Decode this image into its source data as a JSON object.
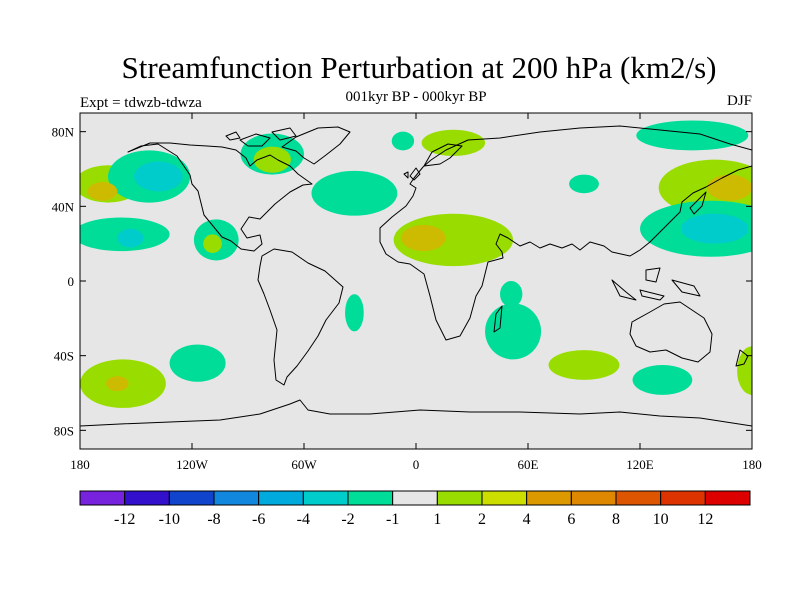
{
  "title": "Streamfunction Perturbation at 200 hPa (km2/s)",
  "subtitle": "001kyr BP - 000kyr BP",
  "left_label": "Expt = tdwzb-tdwza",
  "right_label": "DJF",
  "map": {
    "projection": "cylindrical-equidistant",
    "lon_range": [
      -180,
      180
    ],
    "lat_range": [
      -90,
      90
    ],
    "background_color": "#e6e6e6",
    "lat_ticks": [
      {
        "lat": 80,
        "label": "80N"
      },
      {
        "lat": 40,
        "label": "40N"
      },
      {
        "lat": 0,
        "label": "0"
      },
      {
        "lat": -40,
        "label": "40S"
      },
      {
        "lat": -80,
        "label": "80S"
      }
    ],
    "lon_ticks": [
      {
        "lon": -180,
        "label": "180"
      },
      {
        "lon": -120,
        "label": "120W"
      },
      {
        "lon": -60,
        "label": "60W"
      },
      {
        "lon": 0,
        "label": "0"
      },
      {
        "lon": 60,
        "label": "60E"
      },
      {
        "lon": 120,
        "label": "120E"
      },
      {
        "lon": 180,
        "label": "180"
      }
    ],
    "anomalies": [
      {
        "lon": -165,
        "lat": 52,
        "rx": 18,
        "ry": 10,
        "level": 1
      },
      {
        "lon": -168,
        "lat": 48,
        "rx": 8,
        "ry": 5,
        "level": 2
      },
      {
        "lon": -143,
        "lat": 56,
        "rx": 22,
        "ry": 14,
        "level": -1
      },
      {
        "lon": -138,
        "lat": 56,
        "rx": 13,
        "ry": 8,
        "level": -2
      },
      {
        "lon": -158,
        "lat": 25,
        "rx": 26,
        "ry": 9,
        "level": -1
      },
      {
        "lon": -153,
        "lat": 23,
        "rx": 7,
        "ry": 5,
        "level": -2
      },
      {
        "lon": -107,
        "lat": 22,
        "rx": 12,
        "ry": 11,
        "level": -1
      },
      {
        "lon": -109,
        "lat": 20,
        "rx": 5,
        "ry": 5,
        "level": 1
      },
      {
        "lon": -77,
        "lat": 68,
        "rx": 17,
        "ry": 11,
        "level": -1
      },
      {
        "lon": -77,
        "lat": 65,
        "rx": 10,
        "ry": 7,
        "level": 1
      },
      {
        "lon": -33,
        "lat": 47,
        "rx": 23,
        "ry": 12,
        "level": -1
      },
      {
        "lon": 20,
        "lat": 22,
        "rx": 32,
        "ry": 14,
        "level": 1
      },
      {
        "lon": 4,
        "lat": 23,
        "rx": 12,
        "ry": 7,
        "level": 2
      },
      {
        "lon": 20,
        "lat": 74,
        "rx": 17,
        "ry": 7,
        "level": 1
      },
      {
        "lon": -7,
        "lat": 75,
        "rx": 6,
        "ry": 5,
        "level": -1
      },
      {
        "lon": 90,
        "lat": 52,
        "rx": 8,
        "ry": 5,
        "level": -1
      },
      {
        "lon": 148,
        "lat": 78,
        "rx": 30,
        "ry": 8,
        "level": -1
      },
      {
        "lon": 160,
        "lat": 50,
        "rx": 30,
        "ry": 15,
        "level": 1
      },
      {
        "lon": 168,
        "lat": 50,
        "rx": 12,
        "ry": 7,
        "level": 2
      },
      {
        "lon": 158,
        "lat": 28,
        "rx": 38,
        "ry": 15,
        "level": -1
      },
      {
        "lon": 160,
        "lat": 28,
        "rx": 18,
        "ry": 8,
        "level": -2
      },
      {
        "lon": -33,
        "lat": -17,
        "rx": 5,
        "ry": 10,
        "level": -1
      },
      {
        "lon": 51,
        "lat": -7,
        "rx": 6,
        "ry": 7,
        "level": -1
      },
      {
        "lon": 52,
        "lat": -27,
        "rx": 15,
        "ry": 15,
        "level": -1
      },
      {
        "lon": -117,
        "lat": -44,
        "rx": 15,
        "ry": 10,
        "level": -1
      },
      {
        "lon": -157,
        "lat": -55,
        "rx": 23,
        "ry": 13,
        "level": 1
      },
      {
        "lon": -160,
        "lat": -55,
        "rx": 6,
        "ry": 4,
        "level": 2
      },
      {
        "lon": 90,
        "lat": -45,
        "rx": 19,
        "ry": 8,
        "level": 1
      },
      {
        "lon": 132,
        "lat": -53,
        "rx": 16,
        "ry": 8,
        "level": -1
      },
      {
        "lon": 180,
        "lat": -48,
        "rx": 8,
        "ry": 13,
        "level": 1
      }
    ]
  },
  "colorbar": {
    "colors": [
      "#7722dd",
      "#3311cc",
      "#1144cc",
      "#1188dd",
      "#00aadd",
      "#00cccc",
      "#00dd99",
      "#e6e6e6",
      "#99dd00",
      "#ccdd00",
      "#dd9900",
      "#dd8800",
      "#dd5500",
      "#dd3300",
      "#dd0000"
    ],
    "labels": [
      "-12",
      "-10",
      "-8",
      "-6",
      "-4",
      "-2",
      "-1",
      "1",
      "2",
      "4",
      "6",
      "8",
      "10",
      "12"
    ]
  },
  "level_colors": {
    "-2": "#00cccc",
    "-1": "#00dd99",
    "1": "#99dd00",
    "2": "#ccbb00"
  }
}
